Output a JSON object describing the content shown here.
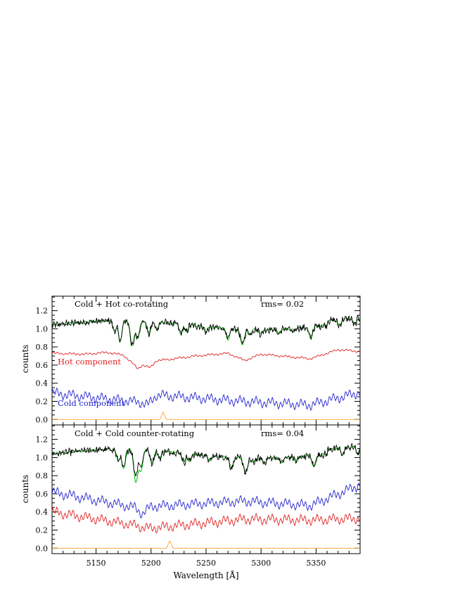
{
  "chart_data": [
    {
      "type": "line",
      "title": "Cold + Hot co-rotating",
      "annotation": "rms= 0.02",
      "xlabel": "",
      "ylabel": "counts",
      "xlim": [
        5110,
        5390
      ],
      "ylim": [
        -0.06,
        1.36
      ],
      "yticks": [
        "0.0",
        "0.2",
        "0.4",
        "0.6",
        "0.8",
        "1.0",
        "1.2"
      ],
      "series": [
        {
          "name": "",
          "color": "#000000",
          "values_desc": "observed spectrum, continuum ~1.05, deep dips near 5185-5200 (~0.75), 5285 (~0.80), 5345 (~0.85)"
        },
        {
          "name": "",
          "color": "#00c000",
          "values_desc": "model fit following observed"
        },
        {
          "name": "Hot component",
          "color": "#e02020",
          "x": [
            5110,
            5140,
            5160,
            5175,
            5183,
            5188,
            5192,
            5199,
            5205,
            5215,
            5240,
            5270,
            5285,
            5300,
            5345,
            5370,
            5390
          ],
          "y": [
            0.73,
            0.72,
            0.74,
            0.71,
            0.62,
            0.56,
            0.6,
            0.57,
            0.65,
            0.66,
            0.7,
            0.73,
            0.65,
            0.72,
            0.67,
            0.77,
            0.75
          ]
        },
        {
          "name": "Cold component",
          "color": "#2020d0",
          "x": [
            5110,
            5190,
            5197,
            5205,
            5283,
            5345,
            5390
          ],
          "y": [
            0.29,
            0.19,
            0.16,
            0.27,
            0.2,
            0.16,
            0.3
          ]
        },
        {
          "name": "",
          "color": "#ffa030",
          "x": [
            5110,
            5208,
            5211,
            5214,
            5390
          ],
          "y": [
            0.0,
            0.0,
            0.08,
            0.0,
            0.0
          ]
        }
      ]
    },
    {
      "type": "line",
      "title": "Cold + Cold counter-rotating",
      "annotation": "rms= 0.04",
      "xlabel": "Wavelength [Å]",
      "ylabel": "counts",
      "xlim": [
        5110,
        5390
      ],
      "ylim": [
        -0.06,
        1.36
      ],
      "xticks": [
        "5150",
        "5200",
        "5250",
        "5300",
        "5350"
      ],
      "yticks": [
        "0.0",
        "0.2",
        "0.4",
        "0.6",
        "0.8",
        "1.0",
        "1.2"
      ],
      "series": [
        {
          "name": "",
          "color": "#000000",
          "values_desc": "observed spectrum, continuum ~1.0"
        },
        {
          "name": "",
          "color": "#00c000",
          "values_desc": "model fit following observed"
        },
        {
          "name": "",
          "color": "#2020d0",
          "x": [
            5110,
            5185,
            5192,
            5200,
            5285,
            5345,
            5390
          ],
          "y": [
            0.62,
            0.45,
            0.38,
            0.46,
            0.52,
            0.47,
            0.7
          ]
        },
        {
          "name": "",
          "color": "#e02020",
          "x": [
            5110,
            5187,
            5192,
            5199,
            5285,
            5345,
            5390
          ],
          "y": [
            0.4,
            0.25,
            0.23,
            0.22,
            0.32,
            0.31,
            0.33
          ]
        },
        {
          "name": "",
          "color": "#ffa030",
          "x": [
            5110,
            5214,
            5217,
            5220,
            5390
          ],
          "y": [
            0.0,
            0.0,
            0.08,
            0.0,
            0.0
          ]
        }
      ]
    }
  ],
  "labels": {
    "p1_title": "Cold + Hot co-rotating",
    "p1_rms": "rms= 0.02",
    "p1_hot": "Hot component",
    "p1_cold": "Cold component",
    "p2_title": "Cold + Cold counter-rotating",
    "p2_rms": "rms= 0.04",
    "ylabel": "counts",
    "xlabel": "Wavelength [Å]"
  }
}
